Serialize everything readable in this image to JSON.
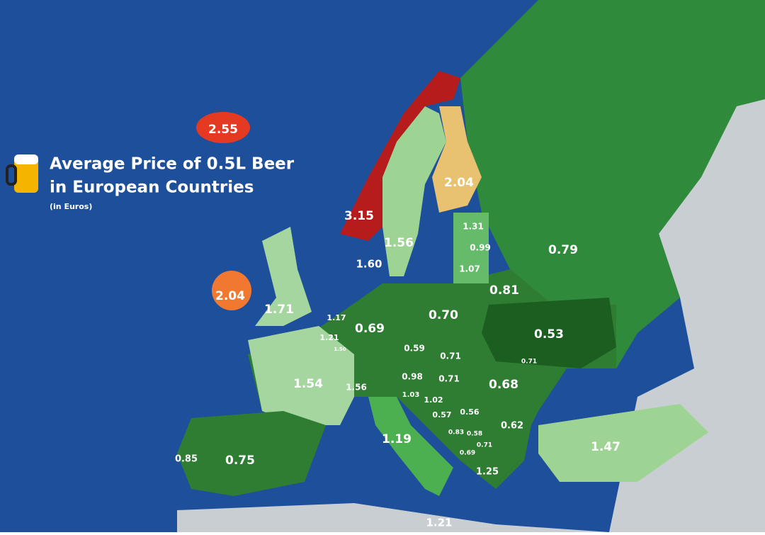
{
  "header": {
    "title_line1": "Average Price of 0.5L Beer",
    "title_line2": "in European Countries",
    "subtitle": "(in Euros)"
  },
  "labels": [
    "2.55",
    "3.15",
    "2.04",
    "1.56",
    "1.60",
    "2.04",
    "1.71",
    "1.31",
    "0.99",
    "1.07",
    "0.79",
    "0.81",
    "0.70",
    "0.69",
    "1.17",
    "1.21",
    "1.50",
    "0.59",
    "0.53",
    "0.71",
    "0.71",
    "0.98",
    "0.71",
    "0.68",
    "1.54",
    "1.56",
    "1.03",
    "1.02",
    "0.57",
    "0.56",
    "0.62",
    "0.83",
    "0.58",
    "0.71",
    "0.69",
    "1.19",
    "1.25",
    "1.47",
    "0.85",
    "0.75",
    "1.21"
  ]
}
